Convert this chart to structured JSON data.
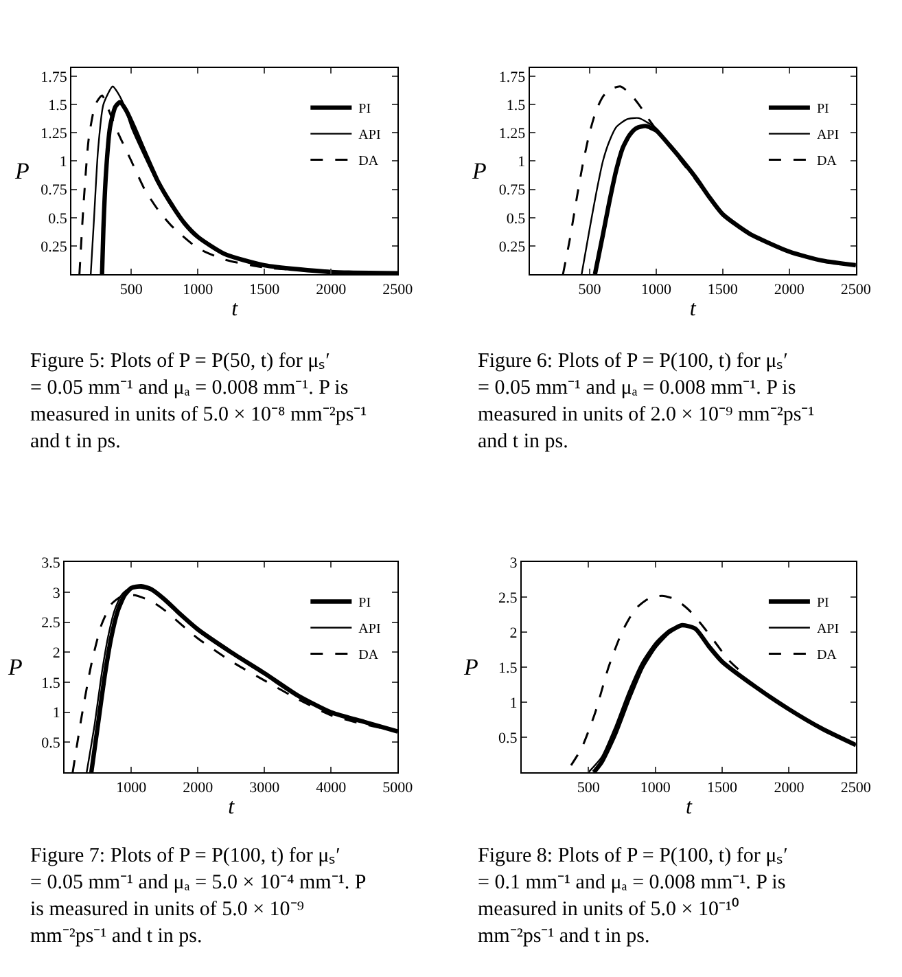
{
  "chart_data": [
    {
      "type": "line",
      "xlabel": "t",
      "ylabel": "P",
      "xlim": [
        50,
        2500
      ],
      "xticks": [
        500,
        1000,
        1500,
        2000,
        2500
      ],
      "ylim": [
        0,
        1.82
      ],
      "yticks": [
        0.25,
        0.5,
        0.75,
        1,
        1.25,
        1.5,
        1.75
      ],
      "legend": "top right",
      "annotations": [
        "Figure 5: Plots of P = P(50, t) for μₛ′ = 0.05 mm⁻¹ and μₐ = 0.008 mm⁻¹. P is measured in units of 5.0 × 10⁻⁸ mm⁻²ps⁻¹ and t in ps."
      ],
      "series": [
        {
          "name": "PI",
          "color": "#000000",
          "line_style": "solid",
          "x": [
            280,
            290,
            310,
            340,
            380,
            415,
            460,
            520,
            600,
            700,
            800,
            900,
            1000,
            1200,
            1500,
            2000,
            2500
          ],
          "values": [
            0,
            0.4,
            0.9,
            1.3,
            1.48,
            1.52,
            1.45,
            1.3,
            1.08,
            0.82,
            0.62,
            0.45,
            0.33,
            0.18,
            0.08,
            0.02,
            0.01
          ]
        },
        {
          "name": "API",
          "color": "#000000",
          "line_style": "solid",
          "x": [
            195,
            220,
            250,
            290,
            360,
            400,
            450,
            500,
            600,
            700,
            800,
            900,
            1000,
            1200,
            1500,
            2000,
            2500
          ],
          "values": [
            0,
            0.5,
            1.1,
            1.5,
            1.66,
            1.6,
            1.48,
            1.3,
            1.04,
            0.8,
            0.6,
            0.44,
            0.32,
            0.17,
            0.08,
            0.02,
            0.01
          ]
        },
        {
          "name": "DA",
          "color": "#000000",
          "line_style": "dashed",
          "x": [
            110,
            140,
            180,
            230,
            280,
            330,
            400,
            500,
            600,
            700,
            800,
            1000,
            1200,
            1500,
            2000,
            2500
          ],
          "values": [
            0,
            0.6,
            1.2,
            1.5,
            1.58,
            1.45,
            1.25,
            1.0,
            0.75,
            0.57,
            0.43,
            0.23,
            0.13,
            0.06,
            0.02,
            0
          ]
        }
      ]
    },
    {
      "type": "line",
      "xlabel": "t",
      "ylabel": "P",
      "xlim": [
        50,
        2500
      ],
      "xticks": [
        500,
        1000,
        1500,
        2000,
        2500
      ],
      "ylim": [
        0,
        1.82
      ],
      "yticks": [
        0.25,
        0.5,
        0.75,
        1,
        1.25,
        1.5,
        1.75
      ],
      "legend": "top right",
      "annotations": [
        "Figure 6: Plots of P = P(100, t) for μₛ′ = 0.05 mm⁻¹ and μₐ = 0.008 mm⁻¹. P is measured in units of 2.0 × 10⁻⁹ mm⁻²ps⁻¹ and t in ps."
      ],
      "series": [
        {
          "name": "PI",
          "color": "#000000",
          "line_style": "solid",
          "x": [
            540,
            600,
            650,
            700,
            750,
            800,
            850,
            920,
            1000,
            1100,
            1200,
            1300,
            1400,
            1500,
            1700,
            2000,
            2250,
            2500
          ],
          "values": [
            0,
            0.35,
            0.65,
            0.92,
            1.12,
            1.23,
            1.29,
            1.31,
            1.27,
            1.14,
            1.0,
            0.85,
            0.68,
            0.53,
            0.36,
            0.2,
            0.12,
            0.08
          ]
        },
        {
          "name": "API",
          "color": "#000000",
          "line_style": "solid",
          "x": [
            440,
            500,
            550,
            600,
            650,
            700,
            780,
            870,
            950,
            1000,
            1100,
            1200,
            1300,
            1400,
            1500,
            1700,
            2000,
            2250,
            2500
          ],
          "values": [
            0,
            0.4,
            0.72,
            1.0,
            1.18,
            1.3,
            1.37,
            1.38,
            1.33,
            1.29,
            1.15,
            1.0,
            0.85,
            0.69,
            0.54,
            0.36,
            0.2,
            0.12,
            0.08
          ]
        },
        {
          "name": "DA",
          "color": "#000000",
          "line_style": "dashed",
          "x": [
            300,
            350,
            400,
            450,
            500,
            550,
            600,
            650,
            730,
            800,
            870,
            950,
            1000,
            1100,
            1200,
            1300,
            1400,
            1500,
            1700,
            2000,
            2250,
            2500
          ],
          "values": [
            0,
            0.3,
            0.65,
            0.98,
            1.25,
            1.45,
            1.57,
            1.63,
            1.66,
            1.6,
            1.5,
            1.36,
            1.28,
            1.13,
            0.98,
            0.83,
            0.67,
            0.52,
            0.35,
            0.2,
            0.12,
            0.08
          ]
        }
      ]
    },
    {
      "type": "line",
      "xlabel": "t",
      "ylabel": "P",
      "xlim": [
        0,
        5000
      ],
      "xticks": [
        1000,
        2000,
        3000,
        4000,
        5000
      ],
      "ylim": [
        0,
        3.5
      ],
      "yticks": [
        0.5,
        1,
        1.5,
        2,
        2.5,
        3,
        3.5
      ],
      "legend": "top right",
      "annotations": [
        "Figure 7: Plots of P = P(100, t) for μₛ′ = 0.05 mm⁻¹ and μₐ = 5.0 × 10⁻⁴ mm⁻¹. P is measured in units of 5.0 × 10⁻⁹ mm⁻²ps⁻¹ and t in ps."
      ],
      "series": [
        {
          "name": "PI",
          "color": "#000000",
          "line_style": "solid",
          "x": [
            400,
            500,
            600,
            700,
            800,
            900,
            1000,
            1150,
            1300,
            1500,
            1750,
            2000,
            2500,
            3000,
            3500,
            4000,
            4500,
            5000
          ],
          "values": [
            0,
            0.8,
            1.6,
            2.25,
            2.7,
            2.95,
            3.07,
            3.1,
            3.05,
            2.88,
            2.62,
            2.38,
            2.0,
            1.65,
            1.28,
            1.0,
            0.84,
            0.68
          ]
        },
        {
          "name": "API",
          "color": "#000000",
          "line_style": "solid",
          "x": [
            330,
            450,
            550,
            650,
            750,
            850,
            950,
            1100,
            1300,
            1500,
            1750,
            2000,
            2500,
            3000,
            3500,
            4000,
            4500,
            5000
          ],
          "values": [
            0,
            0.8,
            1.6,
            2.25,
            2.7,
            2.95,
            3.05,
            3.08,
            3.03,
            2.86,
            2.6,
            2.36,
            1.98,
            1.63,
            1.27,
            0.99,
            0.83,
            0.68
          ]
        },
        {
          "name": "DA",
          "color": "#000000",
          "line_style": "dashed",
          "x": [
            120,
            250,
            400,
            550,
            700,
            850,
            1050,
            1300,
            1500,
            2000,
            2500,
            3000,
            3500,
            4000,
            4500,
            5000
          ],
          "values": [
            0,
            0.9,
            1.8,
            2.45,
            2.8,
            2.93,
            2.95,
            2.85,
            2.7,
            2.23,
            1.85,
            1.53,
            1.22,
            0.95,
            0.8,
            0.68
          ]
        }
      ]
    },
    {
      "type": "line",
      "xlabel": "t",
      "ylabel": "P",
      "xlim": [
        0,
        2500
      ],
      "xticks": [
        500,
        1000,
        1500,
        2000,
        2500
      ],
      "ylim": [
        0,
        3
      ],
      "yticks": [
        0.5,
        1,
        1.5,
        2,
        2.5,
        3
      ],
      "legend": "top right",
      "annotations": [
        "Figure 8: Plots of P = P(100, t) for μₛ′ = 0.1 mm⁻¹ and μₐ = 0.008 mm⁻¹. P is measured in units of 5.0 × 10⁻¹⁰ mm⁻²ps⁻¹ and t in ps."
      ],
      "series": [
        {
          "name": "PI",
          "color": "#000000",
          "line_style": "solid",
          "x": [
            540,
            600,
            700,
            800,
            900,
            1000,
            1100,
            1200,
            1300,
            1400,
            1500,
            1750,
            2000,
            2250,
            2500
          ],
          "values": [
            0,
            0.15,
            0.55,
            1.05,
            1.5,
            1.8,
            2.0,
            2.1,
            2.05,
            1.8,
            1.58,
            1.22,
            0.9,
            0.62,
            0.39
          ]
        },
        {
          "name": "API",
          "color": "#000000",
          "line_style": "solid",
          "x": [
            500,
            600,
            700,
            800,
            900,
            1000,
            1100,
            1200,
            1300,
            1400,
            1500,
            1750,
            2000,
            2250,
            2500
          ],
          "values": [
            0,
            0.22,
            0.65,
            1.15,
            1.57,
            1.85,
            2.03,
            2.11,
            2.06,
            1.82,
            1.59,
            1.23,
            0.9,
            0.62,
            0.39
          ]
        },
        {
          "name": "DA",
          "color": "#000000",
          "line_style": "dashed",
          "x": [
            370,
            450,
            550,
            650,
            750,
            850,
            950,
            1050,
            1150,
            1250,
            1350,
            1450,
            1550,
            1650
          ],
          "values": [
            0.1,
            0.35,
            0.85,
            1.5,
            2.0,
            2.33,
            2.48,
            2.52,
            2.47,
            2.32,
            2.1,
            1.85,
            1.6,
            1.42
          ]
        }
      ]
    }
  ]
}
